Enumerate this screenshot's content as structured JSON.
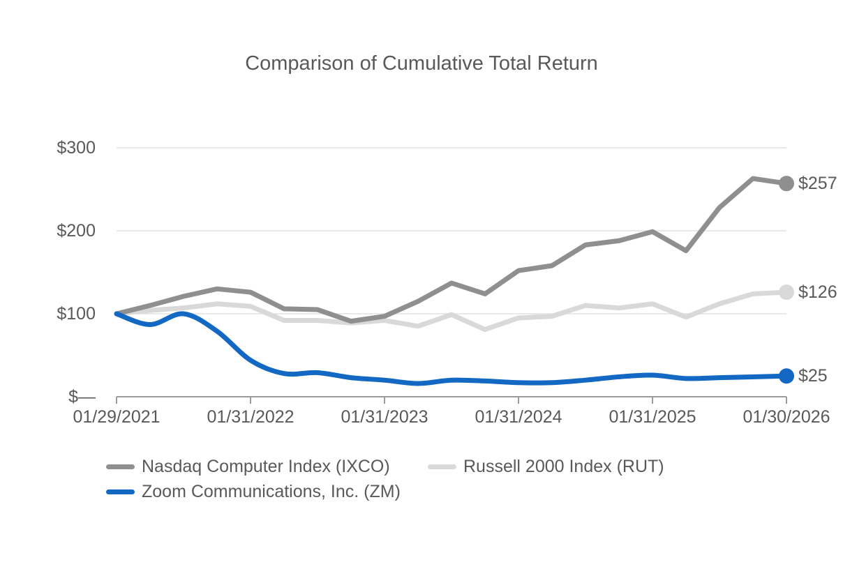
{
  "title": "Comparison of Cumulative Total Return",
  "colors": {
    "ixco": "#8f8f8f",
    "rut": "#d9d9d9",
    "zm": "#1268c3",
    "text": "#595959",
    "gridline": "#e9e9e9",
    "axis": "#9b9b9b"
  },
  "chart_data": {
    "type": "line",
    "title": "Comparison of Cumulative Total Return",
    "xlabel": "",
    "ylabel": "",
    "ylim": [
      0,
      300
    ],
    "grid": "horizontal",
    "legend_position": "bottom-left",
    "points_per_year": 4,
    "y_ticks": [
      0,
      100,
      200,
      300
    ],
    "y_tick_labels": [
      "$—",
      "$100",
      "$200",
      "$300"
    ],
    "x_tick_labels": [
      "01/29/2021",
      "01/31/2022",
      "01/31/2023",
      "01/31/2024",
      "01/31/2025",
      "01/30/2026"
    ],
    "x_tick_indices": [
      0,
      4,
      8,
      12,
      16,
      20
    ],
    "series": [
      {
        "name": "Nasdaq Computer Index (IXCO)",
        "color": "#8f8f8f",
        "end_label": "$257",
        "end_value": 257,
        "smooth": false,
        "values": [
          100,
          110,
          121,
          130,
          126,
          106,
          105,
          91,
          97,
          115,
          137,
          124,
          152,
          158,
          183,
          188,
          199,
          176,
          228,
          263,
          257
        ]
      },
      {
        "name": "Russell 2000 Index (RUT)",
        "color": "#d9d9d9",
        "end_label": "$126",
        "end_value": 126,
        "smooth": false,
        "values": [
          100,
          104,
          107,
          112,
          109,
          92,
          92,
          89,
          92,
          85,
          99,
          81,
          95,
          97,
          110,
          107,
          112,
          96,
          112,
          124,
          126
        ]
      },
      {
        "name": "Zoom Communications, Inc. (ZM)",
        "color": "#1268c3",
        "end_label": "$25",
        "end_value": 25,
        "smooth": true,
        "values": [
          100,
          87,
          100,
          79,
          44,
          28,
          29,
          23,
          20,
          16,
          20,
          19,
          17,
          17,
          20,
          24,
          26,
          22,
          23,
          24,
          25
        ]
      }
    ]
  }
}
